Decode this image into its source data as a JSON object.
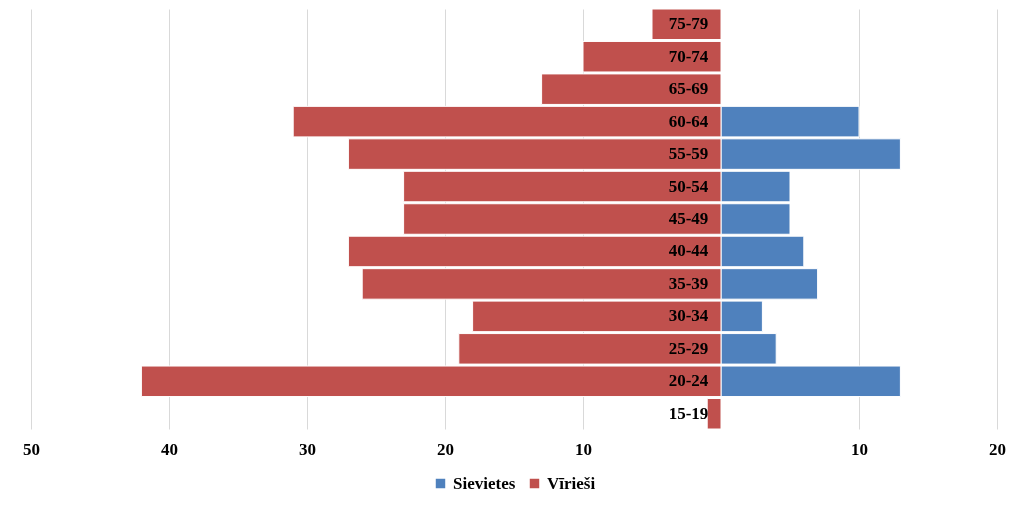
{
  "chart_data": {
    "type": "bar",
    "orientation": "horizontal",
    "stacked": true,
    "categories": [
      "75-79",
      "70-74",
      "65-69",
      "60-64",
      "55-59",
      "50-54",
      "45-49",
      "40-44",
      "35-39",
      "30-34",
      "25-29",
      "20-24",
      "15-19"
    ],
    "series": [
      {
        "name": "Sievietes",
        "color": "#4f81bd",
        "values": [
          null,
          null,
          null,
          10,
          13,
          5,
          5,
          6,
          7,
          3,
          4,
          13,
          null
        ]
      },
      {
        "name": "Vīrieši",
        "color": "#c0504d",
        "values": [
          -5,
          -10,
          -13,
          -31,
          -27,
          -23,
          -23,
          -27,
          -26,
          -18,
          -19,
          -42,
          -1
        ]
      }
    ],
    "xlim": [
      -50,
      20
    ],
    "xticks": [
      {
        "value": -50,
        "label": "50"
      },
      {
        "value": -40,
        "label": "40"
      },
      {
        "value": -30,
        "label": "30"
      },
      {
        "value": -20,
        "label": "20"
      },
      {
        "value": -10,
        "label": "10"
      },
      {
        "value": 10,
        "label": "10"
      },
      {
        "value": 20,
        "label": "20"
      }
    ],
    "grid": "x",
    "legend": "bottom"
  }
}
